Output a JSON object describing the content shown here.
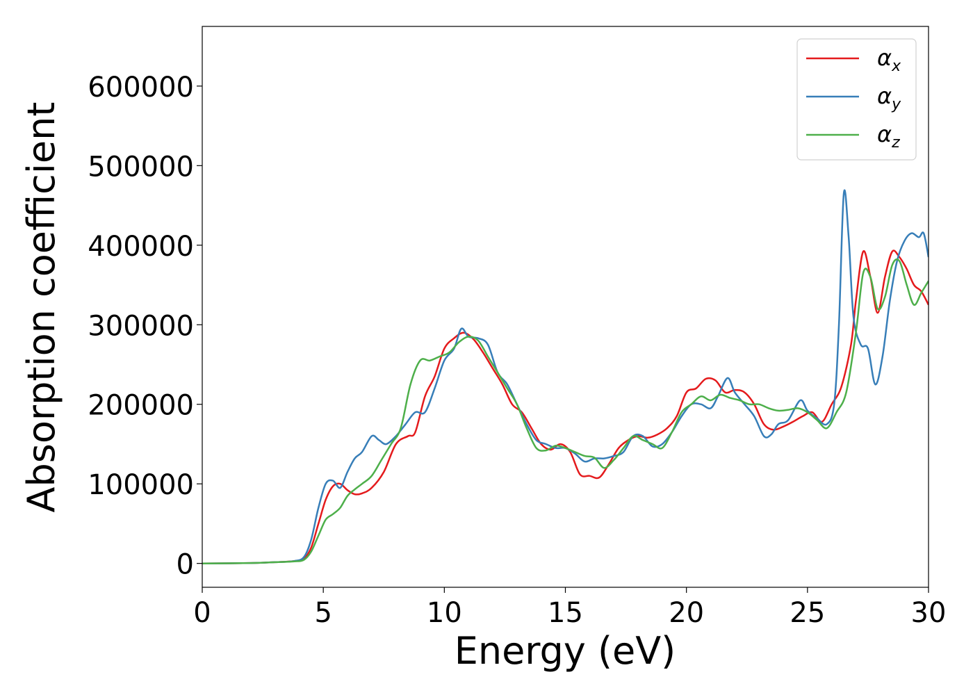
{
  "chart_data": {
    "type": "line",
    "xlabel": "Energy (eV)",
    "ylabel": "Absorption coefficient",
    "xlim": [
      0,
      30
    ],
    "ylim": [
      -30000,
      675000
    ],
    "xticks": [
      0,
      5,
      10,
      15,
      20,
      25,
      30
    ],
    "xtick_labels": [
      "0",
      "5",
      "10",
      "15",
      "20",
      "25",
      "30"
    ],
    "yticks": [
      0,
      100000,
      200000,
      300000,
      400000,
      500000,
      600000
    ],
    "ytick_labels": [
      "0",
      "100000",
      "200000",
      "300000",
      "400000",
      "500000",
      "600000"
    ],
    "grid": false,
    "legend_position": "top-right",
    "series": [
      {
        "name": "α",
        "subscript": "x",
        "color": "#e41a1c",
        "x": [
          0,
          2,
          3,
          3.8,
          4.2,
          4.5,
          4.8,
          5.1,
          5.4,
          5.7,
          6,
          6.3,
          6.6,
          7,
          7.5,
          8,
          8.5,
          8.8,
          9.2,
          9.6,
          10,
          10.4,
          10.8,
          11.2,
          11.6,
          12,
          12.4,
          12.8,
          13.2,
          13.6,
          14,
          14.4,
          14.8,
          15.2,
          15.6,
          16,
          16.4,
          16.8,
          17.2,
          17.6,
          18,
          18.4,
          18.8,
          19.2,
          19.6,
          20,
          20.4,
          20.8,
          21.2,
          21.6,
          22,
          22.4,
          22.8,
          23.2,
          23.6,
          24,
          24.4,
          24.8,
          25.2,
          25.6,
          26,
          26.4,
          26.8,
          27,
          27.3,
          27.6,
          27.9,
          28.2,
          28.5,
          28.8,
          29.1,
          29.4,
          29.7,
          30
        ],
        "y": [
          0,
          500,
          1500,
          3000,
          6000,
          20000,
          50000,
          80000,
          97000,
          100000,
          92000,
          87000,
          88000,
          95000,
          115000,
          150000,
          160000,
          165000,
          210000,
          235000,
          270000,
          283000,
          290000,
          282000,
          265000,
          245000,
          225000,
          200000,
          190000,
          170000,
          150000,
          143000,
          150000,
          140000,
          112000,
          110000,
          108000,
          125000,
          145000,
          155000,
          160000,
          158000,
          162000,
          170000,
          185000,
          215000,
          220000,
          232000,
          230000,
          215000,
          218000,
          215000,
          200000,
          175000,
          168000,
          172000,
          178000,
          185000,
          190000,
          178000,
          200000,
          222000,
          275000,
          330000,
          392000,
          360000,
          315000,
          360000,
          392000,
          385000,
          370000,
          350000,
          342000,
          325000
        ]
      },
      {
        "name": "α",
        "subscript": "y",
        "color": "#377eb8",
        "x": [
          0,
          2,
          3,
          3.8,
          4.2,
          4.5,
          4.8,
          5.1,
          5.4,
          5.7,
          6,
          6.3,
          6.6,
          7,
          7.3,
          7.6,
          8,
          8.4,
          8.8,
          9.2,
          9.6,
          10,
          10.4,
          10.7,
          11,
          11.4,
          11.8,
          12.2,
          12.6,
          13,
          13.4,
          13.8,
          14.2,
          14.6,
          15,
          15.4,
          15.8,
          16.2,
          16.6,
          17,
          17.4,
          17.8,
          18.2,
          18.6,
          19,
          19.4,
          19.8,
          20.2,
          20.6,
          21,
          21.3,
          21.7,
          22,
          22.4,
          22.8,
          23.2,
          23.5,
          23.8,
          24.2,
          24.7,
          25,
          25.4,
          25.8,
          26.1,
          26.3,
          26.5,
          26.7,
          26.9,
          27.2,
          27.5,
          27.8,
          28.1,
          28.4,
          28.7,
          29,
          29.3,
          29.6,
          29.8,
          30
        ],
        "y": [
          0,
          500,
          1500,
          3000,
          8000,
          30000,
          70000,
          100000,
          104000,
          95000,
          115000,
          132000,
          140000,
          160000,
          155000,
          150000,
          160000,
          175000,
          190000,
          190000,
          220000,
          255000,
          270000,
          295000,
          285000,
          283000,
          275000,
          240000,
          225000,
          200000,
          175000,
          155000,
          150000,
          145000,
          145000,
          138000,
          128000,
          132000,
          132000,
          135000,
          140000,
          160000,
          160000,
          147000,
          150000,
          165000,
          185000,
          200000,
          200000,
          195000,
          210000,
          233000,
          215000,
          200000,
          185000,
          160000,
          162000,
          175000,
          180000,
          205000,
          192000,
          182000,
          175000,
          200000,
          300000,
          465000,
          410000,
          310000,
          275000,
          270000,
          225000,
          260000,
          330000,
          380000,
          405000,
          415000,
          410000,
          415000,
          385000
        ]
      },
      {
        "name": "α",
        "subscript": "z",
        "color": "#4daf4a",
        "x": [
          0,
          2,
          3,
          3.8,
          4.2,
          4.5,
          4.8,
          5.1,
          5.4,
          5.7,
          6,
          6.3,
          6.6,
          7,
          7.4,
          7.8,
          8.2,
          8.6,
          9,
          9.4,
          9.8,
          10.2,
          10.6,
          11,
          11.4,
          11.8,
          12.2,
          12.6,
          13,
          13.4,
          13.8,
          14.2,
          14.6,
          15,
          15.4,
          15.8,
          16.2,
          16.6,
          17,
          17.4,
          17.8,
          18.2,
          18.6,
          19,
          19.4,
          19.8,
          20.2,
          20.6,
          21,
          21.4,
          21.8,
          22.2,
          22.6,
          23,
          23.4,
          23.8,
          24.2,
          24.6,
          25,
          25.4,
          25.8,
          26.2,
          26.6,
          27,
          27.3,
          27.6,
          27.9,
          28.2,
          28.5,
          28.8,
          29.1,
          29.4,
          29.7,
          30
        ],
        "y": [
          0,
          500,
          1500,
          2500,
          4500,
          15000,
          35000,
          55000,
          62000,
          70000,
          85000,
          93000,
          100000,
          110000,
          130000,
          150000,
          170000,
          225000,
          255000,
          255000,
          260000,
          265000,
          278000,
          285000,
          280000,
          260000,
          240000,
          220000,
          200000,
          170000,
          145000,
          142000,
          148000,
          145000,
          140000,
          135000,
          133000,
          120000,
          130000,
          145000,
          160000,
          155000,
          150000,
          145000,
          165000,
          190000,
          200000,
          210000,
          205000,
          212000,
          208000,
          205000,
          200000,
          200000,
          195000,
          192000,
          193000,
          195000,
          190000,
          180000,
          170000,
          190000,
          215000,
          290000,
          365000,
          360000,
          320000,
          335000,
          375000,
          380000,
          350000,
          325000,
          340000,
          355000
        ]
      }
    ]
  }
}
